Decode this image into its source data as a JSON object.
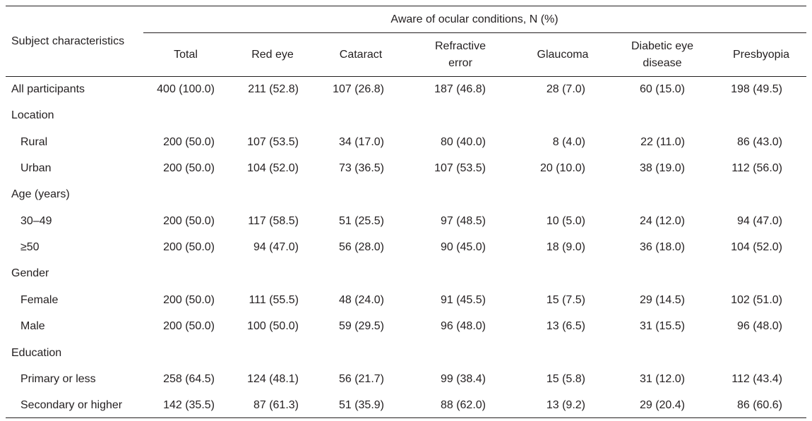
{
  "table": {
    "group_header": "Aware of ocular conditions, N (%)",
    "stub_header": "Subject characteristics",
    "columns": [
      "Total",
      "Red eye",
      "Cataract",
      "Refractive error",
      "Glaucoma",
      "Diabetic eye disease",
      "Presbyopia"
    ],
    "rows": [
      {
        "label": "All participants",
        "values": [
          "400 (100.0)",
          "211 (52.8)",
          "107 (26.8)",
          "187 (46.8)",
          "28 (7.0)",
          "60 (15.0)",
          "198 (49.5)"
        ]
      }
    ],
    "groups": [
      {
        "label": "Location",
        "rows": [
          {
            "label": "Rural",
            "values": [
              "200 (50.0)",
              "107 (53.5)",
              "34 (17.0)",
              "80 (40.0)",
              "8 (4.0)",
              "22 (11.0)",
              "86 (43.0)"
            ]
          },
          {
            "label": "Urban",
            "values": [
              "200 (50.0)",
              "104 (52.0)",
              "73 (36.5)",
              "107 (53.5)",
              "20 (10.0)",
              "38 (19.0)",
              "112 (56.0)"
            ]
          }
        ]
      },
      {
        "label": "Age (years)",
        "rows": [
          {
            "label": "30–49",
            "values": [
              "200 (50.0)",
              "117 (58.5)",
              "51 (25.5)",
              "97 (48.5)",
              "10 (5.0)",
              "24 (12.0)",
              "94 (47.0)"
            ]
          },
          {
            "label": "≥50",
            "values": [
              "200 (50.0)",
              "94 (47.0)",
              "56 (28.0)",
              "90 (45.0)",
              "18 (9.0)",
              "36 (18.0)",
              "104 (52.0)"
            ]
          }
        ]
      },
      {
        "label": "Gender",
        "rows": [
          {
            "label": "Female",
            "values": [
              "200 (50.0)",
              "111 (55.5)",
              "48 (24.0)",
              "91 (45.5)",
              "15 (7.5)",
              "29 (14.5)",
              "102 (51.0)"
            ]
          },
          {
            "label": "Male",
            "values": [
              "200 (50.0)",
              "100 (50.0)",
              "59 (29.5)",
              "96 (48.0)",
              "13 (6.5)",
              "31 (15.5)",
              "96 (48.0)"
            ]
          }
        ]
      },
      {
        "label": "Education",
        "rows": [
          {
            "label": "Primary or less",
            "values": [
              "258 (64.5)",
              "124 (48.1)",
              "56 (21.7)",
              "99 (38.4)",
              "15 (5.8)",
              "31 (12.0)",
              "112 (43.4)"
            ]
          },
          {
            "label": "Secondary or higher",
            "values": [
              "142 (35.5)",
              "87 (61.3)",
              "51 (35.9)",
              "88 (62.0)",
              "13 (9.2)",
              "29 (20.4)",
              "86 (60.6)"
            ]
          }
        ]
      }
    ]
  }
}
